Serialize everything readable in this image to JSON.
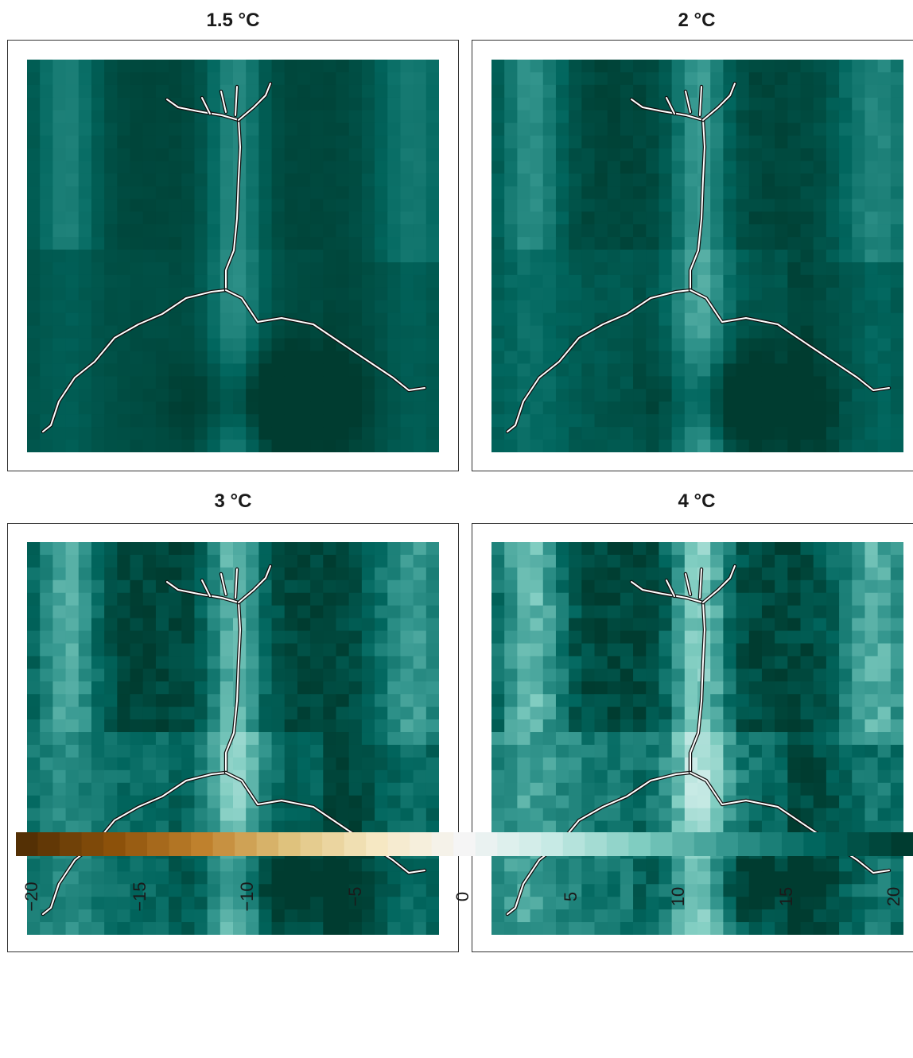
{
  "panels": [
    {
      "title": "1.5 °C",
      "level": 0.1
    },
    {
      "title": "2 °C",
      "level": 0.25
    },
    {
      "title": "3 °C",
      "level": 0.5
    },
    {
      "title": "4 °C",
      "level": 0.7
    }
  ],
  "chart_data": {
    "type": "heatmap",
    "titles": [
      "1.5 °C",
      "2 °C",
      "3 °C",
      "4 °C"
    ],
    "colorbar": {
      "min": -20,
      "max": 20,
      "ticks": [
        -20,
        -15,
        -10,
        -5,
        0,
        5,
        10,
        15,
        20
      ],
      "tick_labels": [
        "−20",
        "−15",
        "−10",
        "−5",
        "0",
        "5",
        "10",
        "15",
        "20"
      ],
      "colors": [
        "#543005",
        "#8c510a",
        "#bf812d",
        "#dfc27d",
        "#f6e8c3",
        "#f5f5f5",
        "#c7eae5",
        "#80cdc1",
        "#35978f",
        "#01665e",
        "#003c30"
      ]
    },
    "legend": "bottom"
  }
}
